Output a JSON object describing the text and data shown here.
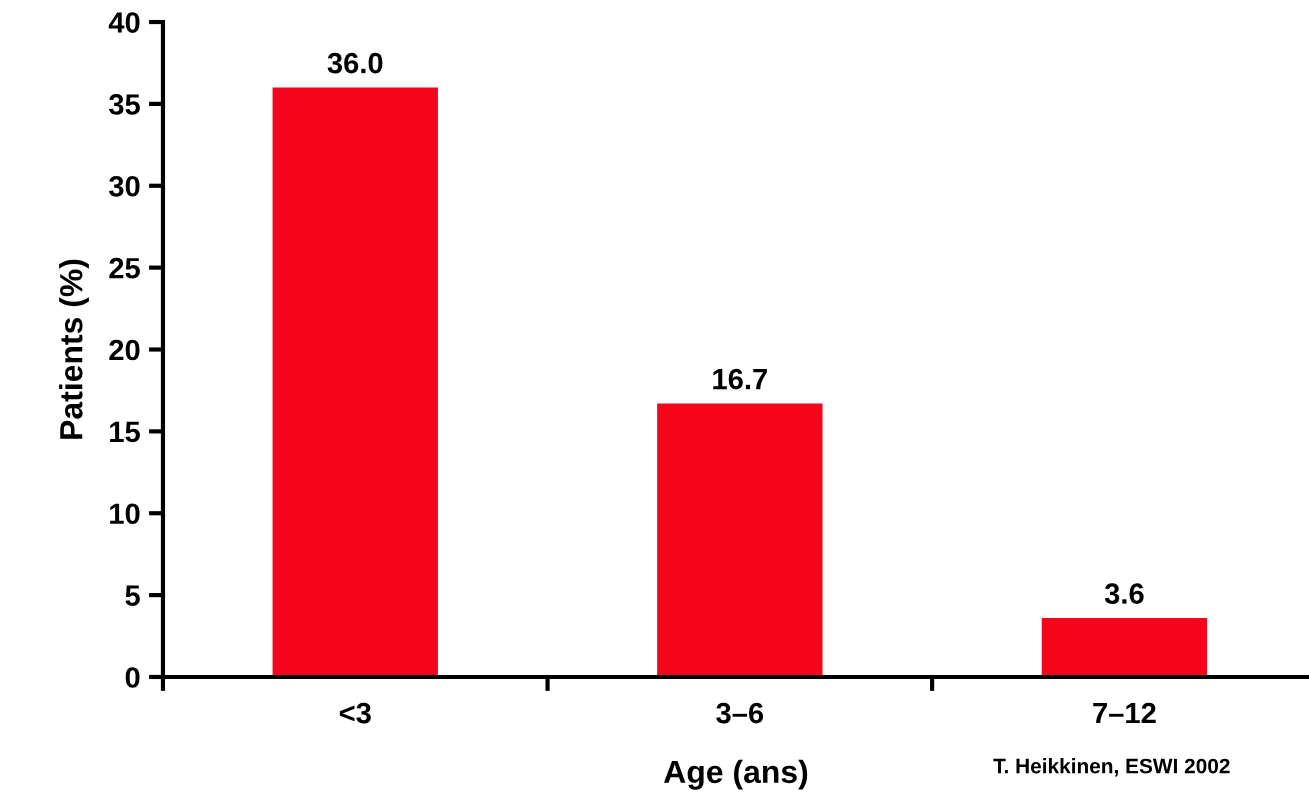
{
  "chart_data": {
    "type": "bar",
    "xlabel": "Age (ans)",
    "ylabel": "Patients (%)",
    "categories": [
      "<3",
      "3–6",
      "7–12"
    ],
    "values": [
      36.0,
      16.7,
      3.6
    ],
    "color": "#f5051b",
    "value_labels": [
      "36.0",
      "16.7",
      "3.6"
    ],
    "ylim": [
      0,
      40
    ],
    "yticks": [
      0,
      5,
      10,
      15,
      20,
      25,
      30,
      35,
      40
    ],
    "grid": false,
    "annotations": [
      "T. Heikkinen, ESWI 2002"
    ]
  }
}
